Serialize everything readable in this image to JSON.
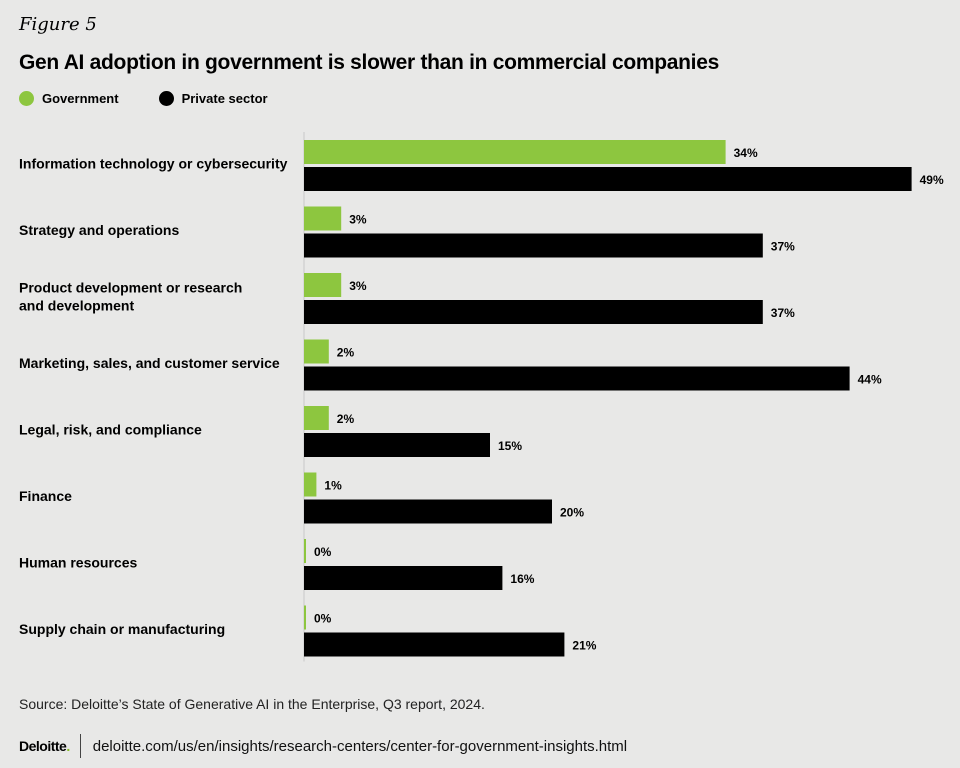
{
  "figure_label": "Figure 5",
  "source": "Source: Deloitte’s State of Generative AI in the Enterprise, Q3 report, 2024.",
  "footer": {
    "logo_text": "Deloitte",
    "logo_dot": ".",
    "url": "deloitte.com/us/en/insights/research-centers/center-for-government-insights.html"
  },
  "colors": {
    "government": "#8dc63f",
    "private": "#000000",
    "background": "#e8e8e7"
  },
  "chart_data": {
    "type": "bar",
    "orientation": "horizontal",
    "title": "Gen AI adoption in government is slower than in commercial companies",
    "legend_position": "top-left",
    "grid": false,
    "xlim": [
      0,
      50
    ],
    "categories": [
      [
        "Information technology or cybersecurity"
      ],
      [
        "Strategy and operations"
      ],
      [
        "Product development or research",
        "and development"
      ],
      [
        "Marketing, sales, and customer service"
      ],
      [
        "Legal, risk, and compliance"
      ],
      [
        "Finance"
      ],
      [
        "Human resources"
      ],
      [
        "Supply chain or manufacturing"
      ]
    ],
    "series": [
      {
        "name": "Government",
        "color": "#8dc63f",
        "values": [
          34,
          3,
          3,
          2,
          2,
          1,
          0,
          0
        ],
        "labels": [
          "34%",
          "3%",
          "3%",
          "2%",
          "2%",
          "1%",
          "0%",
          "0%"
        ]
      },
      {
        "name": "Private sector",
        "color": "#000000",
        "values": [
          49,
          37,
          37,
          44,
          15,
          20,
          16,
          21
        ],
        "labels": [
          "49%",
          "37%",
          "37%",
          "44%",
          "15%",
          "20%",
          "16%",
          "21%"
        ]
      }
    ]
  }
}
